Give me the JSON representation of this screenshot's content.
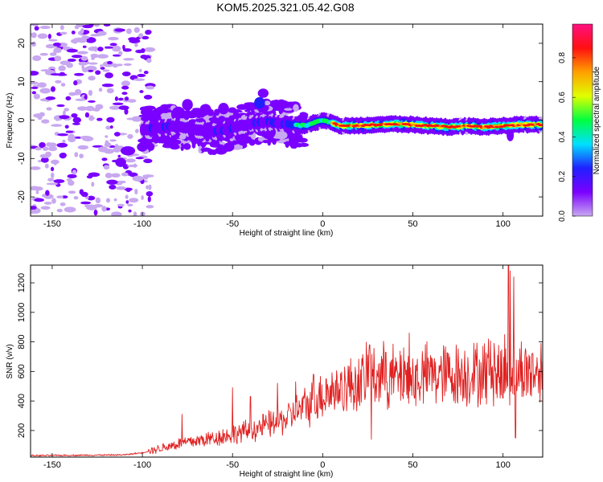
{
  "title": "KOM5.2025.321.05.42.G08",
  "chart_data": [
    {
      "id": "spectrogram",
      "type": "heatmap",
      "xlabel": "Height of straight line (km)",
      "ylabel": "Frequency (Hz)",
      "xlim": [
        -162,
        122
      ],
      "ylim": [
        -25,
        25
      ],
      "xticks": [
        -150,
        -100,
        -50,
        0,
        50,
        100
      ],
      "yticks": [
        -20,
        -10,
        0,
        10,
        20
      ],
      "colorbar": {
        "label": "Normalized spectral amplitude",
        "range": [
          0,
          0.97
        ],
        "ticks": [
          "0.0",
          "0.2",
          "0.4",
          "0.6",
          "0.8"
        ],
        "tick_values": [
          0,
          0.2,
          0.4,
          0.6,
          0.8
        ],
        "colors": [
          "#c8a8f0",
          "#7a00ff",
          "#2020ff",
          "#00e0ff",
          "#00ff40",
          "#e0ff00",
          "#ffa000",
          "#ff1010",
          "#ff1080"
        ]
      },
      "ridge": [
        [
          -100,
          -2.5
        ],
        [
          -90,
          -2
        ],
        [
          -80,
          -1.5
        ],
        [
          -70,
          -2.5
        ],
        [
          -60,
          -3
        ],
        [
          -50,
          -2
        ],
        [
          -40,
          -1
        ],
        [
          -30,
          -0.5
        ],
        [
          -20,
          -1
        ],
        [
          -10,
          -1.5
        ],
        [
          0,
          0
        ],
        [
          10,
          -1.5
        ],
        [
          20,
          -1.5
        ],
        [
          30,
          -1.2
        ],
        [
          40,
          -1
        ],
        [
          50,
          -1.2
        ],
        [
          60,
          -1.5
        ],
        [
          70,
          -1.8
        ],
        [
          80,
          -1.5
        ],
        [
          90,
          -1.8
        ],
        [
          100,
          -1.5
        ],
        [
          110,
          -1.2
        ],
        [
          122,
          -1.2
        ]
      ],
      "blobs": [
        [
          -80,
          1.5,
          0.15,
          4,
          2
        ],
        [
          -75,
          4,
          0.12,
          3,
          1.5
        ],
        [
          -70,
          -4,
          0.15,
          5,
          2
        ],
        [
          -60,
          -2,
          0.12,
          4,
          2
        ],
        [
          -55,
          3,
          0.15,
          3,
          1.5
        ],
        [
          -45,
          -4,
          0.12,
          4,
          2
        ],
        [
          -35,
          4.5,
          0.2,
          3,
          1.5
        ],
        [
          -30,
          -3,
          0.15,
          4,
          2
        ],
        [
          -90,
          -4,
          0.12,
          4,
          1.5
        ],
        [
          -95,
          1,
          0.1,
          3,
          1.5
        ],
        [
          -65,
          3,
          0.12,
          3,
          1.2
        ],
        [
          -40,
          1,
          0.15,
          3,
          1.2
        ],
        [
          -52,
          -7,
          0.1,
          3,
          1.2
        ],
        [
          -85,
          -6,
          0.1,
          3,
          1.2
        ],
        [
          -33,
          7,
          0.12,
          3,
          1.2
        ],
        [
          -100,
          -7,
          0.1,
          3,
          1.2
        ],
        [
          104,
          -4,
          0.1,
          2,
          1.5
        ],
        [
          -108,
          -8,
          0.08,
          4,
          1.2
        ],
        [
          -112,
          -11,
          0.08,
          3,
          1.2
        ]
      ],
      "speckle_left": -100,
      "speckle_right": -25,
      "speckle_count": 360
    },
    {
      "id": "snr",
      "type": "line",
      "xlabel": "Height of straight line (km)",
      "ylabel": "SNR (v/v)",
      "xlim": [
        -162,
        122
      ],
      "ylim": [
        20,
        1320
      ],
      "xticks": [
        -150,
        -100,
        -50,
        0,
        50,
        100
      ],
      "yticks": [
        200,
        400,
        600,
        800,
        1000,
        1200
      ],
      "line_color": "#e02020",
      "trend": [
        [
          -162,
          30
        ],
        [
          -110,
          35
        ],
        [
          -100,
          50
        ],
        [
          -90,
          80
        ],
        [
          -80,
          110
        ],
        [
          -60,
          150
        ],
        [
          -40,
          200
        ],
        [
          -20,
          280
        ],
        [
          -10,
          360
        ],
        [
          0,
          440
        ],
        [
          10,
          490
        ],
        [
          20,
          520
        ],
        [
          28,
          580
        ],
        [
          40,
          560
        ],
        [
          50,
          560
        ],
        [
          60,
          570
        ],
        [
          80,
          580
        ],
        [
          95,
          590
        ],
        [
          105,
          590
        ],
        [
          110,
          600
        ],
        [
          122,
          600
        ]
      ],
      "spikes": [
        [
          -78,
          310
        ],
        [
          -50,
          490
        ],
        [
          -40,
          430
        ],
        [
          -25,
          520
        ],
        [
          -15,
          530
        ],
        [
          -5,
          580
        ],
        [
          2,
          550
        ],
        [
          8,
          570
        ],
        [
          25,
          710
        ],
        [
          27,
          140
        ],
        [
          26,
          780
        ],
        [
          35,
          730
        ],
        [
          45,
          760
        ],
        [
          48,
          860
        ],
        [
          51,
          420
        ],
        [
          60,
          630
        ],
        [
          85,
          700
        ],
        [
          92,
          820
        ],
        [
          95,
          790
        ],
        [
          99,
          440
        ],
        [
          101,
          850
        ],
        [
          103,
          1330
        ],
        [
          104,
          1280
        ],
        [
          106,
          1240
        ],
        [
          107,
          150
        ],
        [
          100,
          420
        ]
      ]
    }
  ]
}
